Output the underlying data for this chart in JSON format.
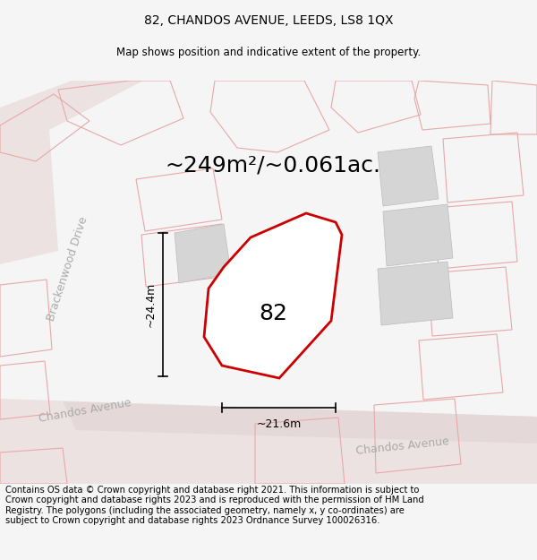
{
  "title": "82, CHANDOS AVENUE, LEEDS, LS8 1QX",
  "subtitle": "Map shows position and indicative extent of the property.",
  "area_text": "~249m²/~0.061ac.",
  "label_82": "82",
  "dim_height": "~24.4m",
  "dim_width": "~21.6m",
  "street_brackenwood": "Brackenwood Drive",
  "street_chandos_left": "Chandos Avenue",
  "street_chandos_right": "Chandos Avenue",
  "footer": "Contains OS data © Crown copyright and database right 2021. This information is subject to Crown copyright and database rights 2023 and is reproduced with the permission of HM Land Registry. The polygons (including the associated geometry, namely x, y co-ordinates) are subject to Crown copyright and database rights 2023 Ordnance Survey 100026316.",
  "bg_color": "#f5f5f5",
  "map_bg": "#ffffff",
  "property_ec": "#cc0000",
  "property_lw": 2.0,
  "road_label_color": "#aaaaaa",
  "building_fc": "#d5d5d5",
  "building_ec": "#bbbbbb",
  "outline_ec": "#e8a8a8",
  "road_band_fc": "#ede5e5",
  "title_fontsize": 10,
  "subtitle_fontsize": 8.5,
  "area_fontsize": 18,
  "label_fontsize": 18,
  "street_fontsize": 9,
  "dim_fontsize": 9,
  "footer_fontsize": 7.2
}
